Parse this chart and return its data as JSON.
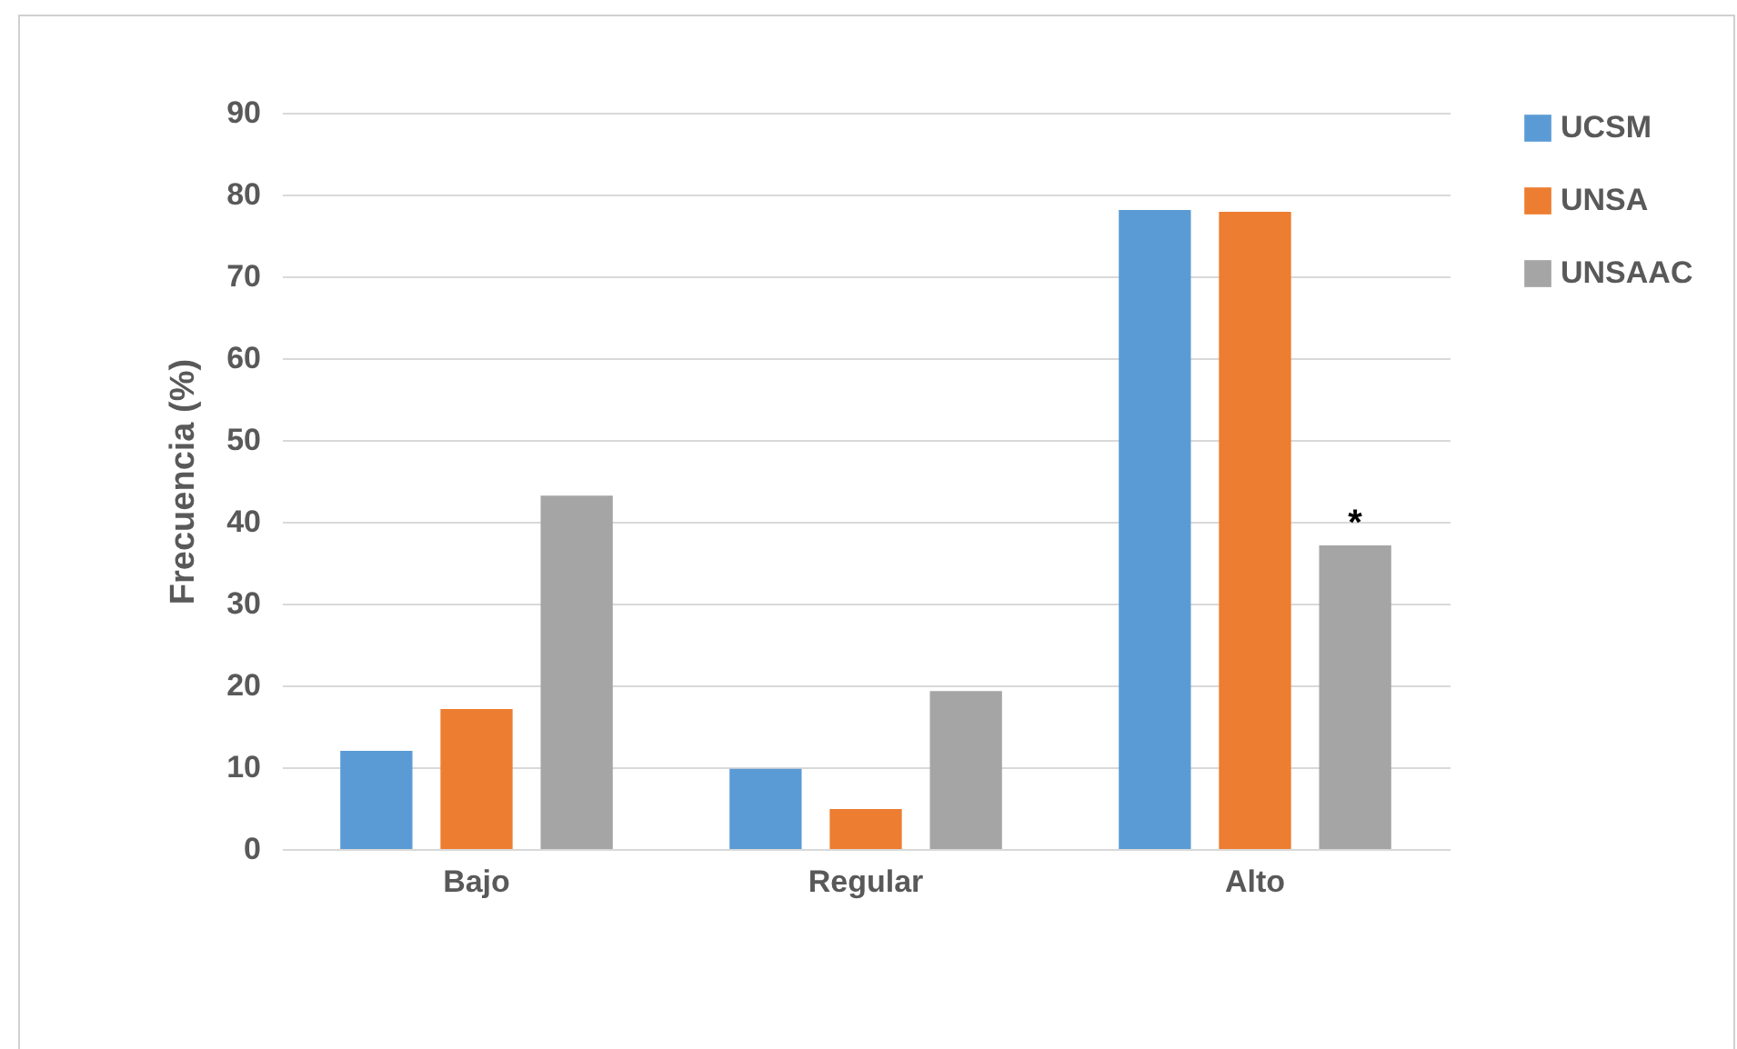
{
  "chart_data": {
    "type": "bar",
    "ylabel": "Frecuencia (%)",
    "categories": [
      "Bajo",
      "Regular",
      "Alto"
    ],
    "series": [
      {
        "name": "UCSM",
        "color": "#5b9bd5",
        "values": [
          12,
          9.8,
          78.1
        ]
      },
      {
        "name": "UNSA",
        "color": "#ed7d31",
        "values": [
          17.1,
          4.9,
          77.9
        ]
      },
      {
        "name": "UNSAAC",
        "color": "#a5a5a5",
        "values": [
          43.2,
          19.3,
          37.1
        ]
      }
    ],
    "ylim": [
      0,
      90
    ],
    "yticks": [
      0,
      10,
      20,
      30,
      40,
      50,
      60,
      70,
      80,
      90
    ],
    "grid": "y",
    "legend": "right",
    "annotations": [
      "*"
    ]
  }
}
